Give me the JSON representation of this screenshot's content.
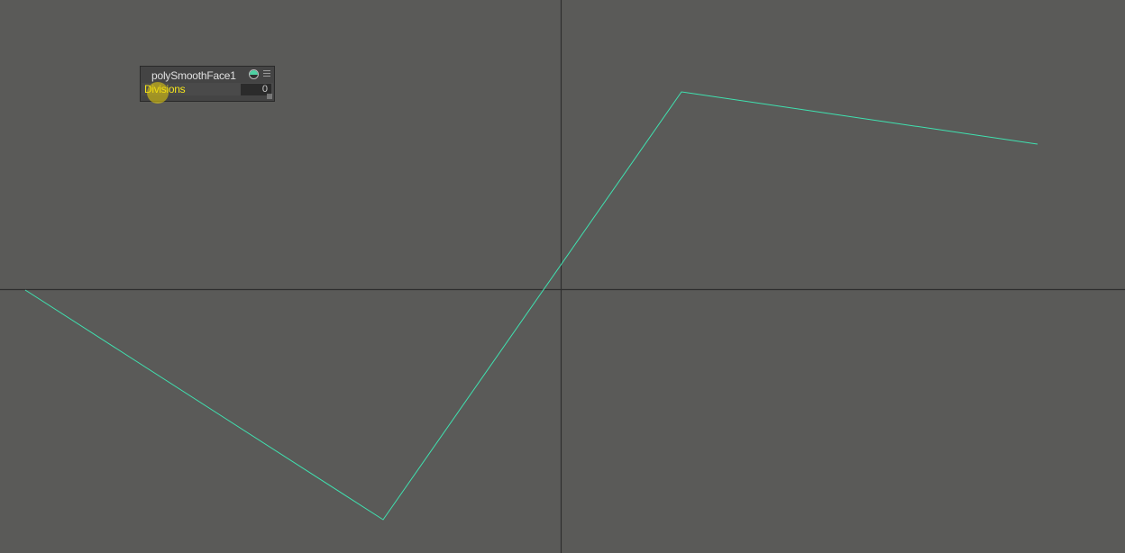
{
  "hud": {
    "title": "polySmoothFace1",
    "attribute_label": "Divisions",
    "attribute_value": "0",
    "icons": {
      "visibility": "circle-toggle-icon",
      "options": "menu-lines-icon",
      "resize": "resize-grip-icon"
    }
  },
  "viewport": {
    "background_color": "#5a5a58",
    "axis_color": "#2e2e2e",
    "curve_color": "#3fe2b0",
    "cursor_highlight_color": "#ecd30a"
  }
}
